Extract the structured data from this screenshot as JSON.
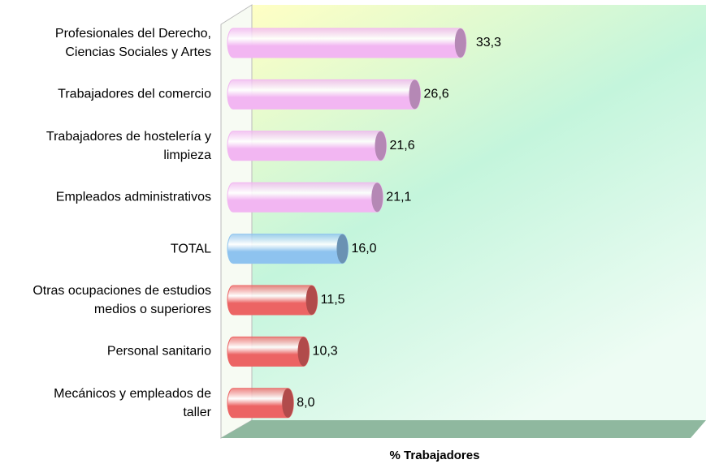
{
  "chart_data": {
    "type": "bar",
    "orientation": "horizontal",
    "x_axis_label": "% Trabajadores",
    "categories": [
      "Profesionales del Derecho,\nCiencias Sociales y Artes",
      "Trabajadores del comercio",
      "Trabajadores de hostelería y\nlimpieza",
      "Empleados administrativos",
      "TOTAL",
      "Otras ocupaciones de estudios\nmedios o superiores",
      "Personal sanitario",
      "Mecánicos y empleados de\ntaller"
    ],
    "values": [
      33.3,
      26.6,
      21.6,
      21.1,
      16.0,
      11.5,
      10.3,
      8.0
    ],
    "value_labels": [
      "33,3",
      "26,6",
      "21,6",
      "21,1",
      "16,0",
      "11,5",
      "10,3",
      "8,0"
    ],
    "colors": [
      "#f2b6f2",
      "#f2b6f2",
      "#f2b6f2",
      "#f2b6f2",
      "#8ec3ef",
      "#ec6464",
      "#ec6464",
      "#ec6464"
    ],
    "xlim": [
      0,
      67
    ]
  }
}
